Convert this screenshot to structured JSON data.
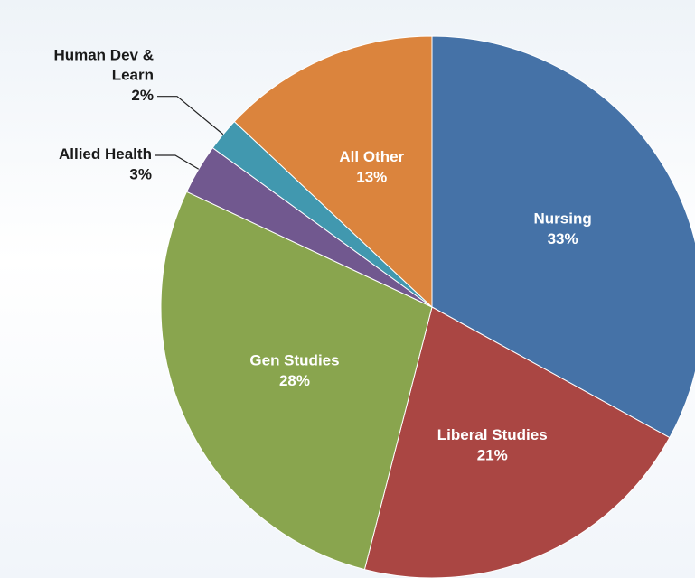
{
  "chart_data": {
    "type": "pie",
    "categories": [
      "Nursing",
      "Liberal Studies",
      "Gen Studies",
      "Allied Health",
      "Human Dev & Learn",
      "All Other"
    ],
    "values": [
      33,
      21,
      28,
      3,
      2,
      13
    ],
    "value_labels": [
      "33%",
      "21%",
      "28%",
      "3%",
      "2%",
      "13%"
    ],
    "colors": [
      "#4572a7",
      "#aa4643",
      "#89a54e",
      "#71588f",
      "#4198af",
      "#db843d"
    ]
  }
}
